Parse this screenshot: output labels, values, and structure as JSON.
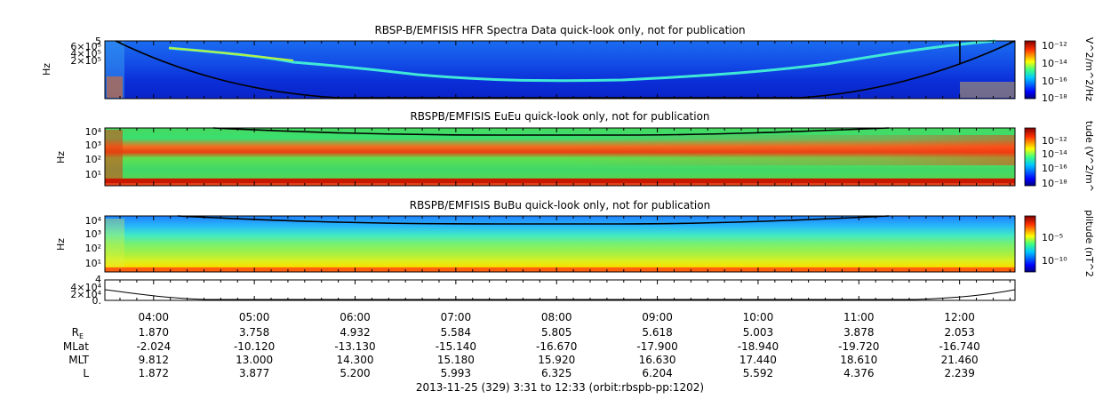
{
  "chart_data": [
    {
      "type": "heatmap",
      "title": "RBSP-B/EMFISIS  HFR Spectra Data quick-look only, not for publication",
      "ylabel": "Hz",
      "yticks": [
        "6×10⁵",
        "4×10⁵",
        "2×10⁵"
      ],
      "ylim_label": "5",
      "colorbar_label": "V^2/m^2/Hz",
      "colorbar_ticks": [
        "10⁻¹²",
        "10⁻¹⁴",
        "10⁻¹⁶",
        "10⁻¹⁸"
      ]
    },
    {
      "type": "heatmap",
      "title": "RBSPB/EMFISIS  EuEu quick-look only, not for publication",
      "ylabel": "Hz",
      "yticks": [
        "10⁴",
        "10³",
        "10²",
        "10¹"
      ],
      "colorbar_label": "tude (V^2/m^",
      "colorbar_ticks": [
        "10⁻¹²",
        "10⁻¹⁴",
        "10⁻¹⁶",
        "10⁻¹⁸"
      ]
    },
    {
      "type": "heatmap",
      "title": "RBSPB/EMFISIS  BuBu quick-look only, not for publication",
      "ylabel": "Hz",
      "yticks": [
        "10⁴",
        "10³",
        "10²",
        "10¹"
      ],
      "colorbar_label": "plitude (nT^2",
      "colorbar_ticks": [
        "10⁻⁵",
        "10⁻¹⁰"
      ]
    },
    {
      "type": "line",
      "yticks": [
        "4×10⁴",
        "2×10⁴",
        "0."
      ],
      "ylim_label": "4"
    }
  ],
  "x_axis": {
    "times": [
      "04:00",
      "05:00",
      "06:00",
      "07:00",
      "08:00",
      "09:00",
      "10:00",
      "11:00",
      "12:00"
    ],
    "rows": [
      {
        "label": "R",
        "sub": "E",
        "values": [
          "1.870",
          "3.758",
          "4.932",
          "5.584",
          "5.805",
          "5.618",
          "5.003",
          "3.878",
          "2.053"
        ]
      },
      {
        "label": "MLat",
        "values": [
          "-2.024",
          "-10.120",
          "-13.130",
          "-15.140",
          "-16.670",
          "-17.900",
          "-18.940",
          "-19.720",
          "-16.740"
        ]
      },
      {
        "label": "MLT",
        "values": [
          "9.812",
          "13.000",
          "14.300",
          "15.180",
          "15.920",
          "16.630",
          "17.440",
          "18.610",
          "21.460"
        ]
      },
      {
        "label": "L",
        "values": [
          "1.872",
          "3.877",
          "5.200",
          "5.993",
          "6.325",
          "6.204",
          "5.592",
          "4.376",
          "2.239"
        ]
      }
    ],
    "caption": "2013-11-25 (329) 3:31 to 12:33 (orbit:rbspb-pp:1202)"
  }
}
